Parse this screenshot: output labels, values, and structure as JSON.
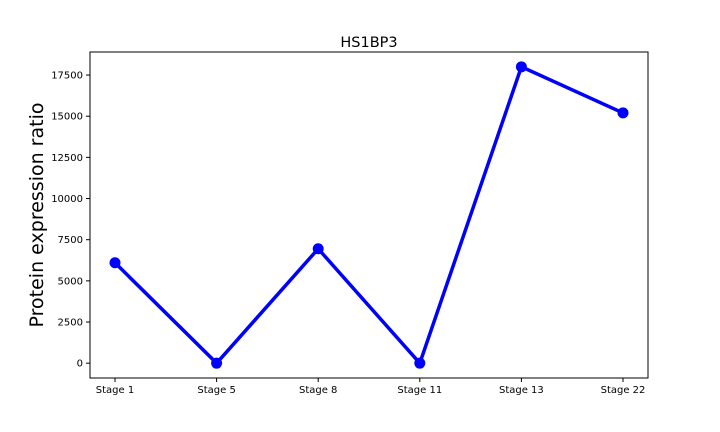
{
  "chart_data": {
    "type": "line",
    "title": "HS1BP3",
    "xlabel": "",
    "ylabel": "Protein expression ratio",
    "categories": [
      "Stage 1",
      "Stage 5",
      "Stage 8",
      "Stage 11",
      "Stage 13",
      "Stage 22"
    ],
    "series": [
      {
        "values": [
          6100,
          0,
          6950,
          0,
          18000,
          15200
        ]
      }
    ],
    "yticks": [
      0,
      2500,
      5000,
      7500,
      10000,
      12500,
      15000,
      17500
    ],
    "ylim": [
      -900,
      18900
    ],
    "grid": false,
    "line_color": "#0000ff",
    "marker_color": "#0000ff"
  }
}
